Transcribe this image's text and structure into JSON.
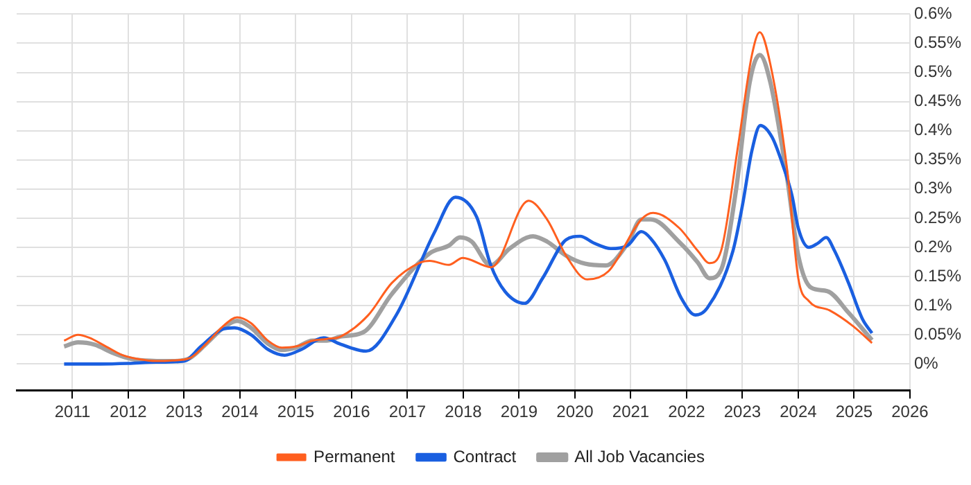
{
  "chart_data": {
    "type": "line",
    "series": [
      {
        "name": "Permanent",
        "color": "#ff5f1f",
        "x": [
          2010.85,
          2011.1,
          2011.3,
          2011.6,
          2011.9,
          2012.2,
          2012.5,
          2012.8,
          2013.1,
          2013.4,
          2013.7,
          2013.95,
          2014.2,
          2014.5,
          2014.75,
          2015.0,
          2015.3,
          2015.55,
          2015.8,
          2016.3,
          2016.72,
          2017.23,
          2017.4,
          2017.74,
          2017.99,
          2018.5,
          2019.17,
          2019.5,
          2019.84,
          2020.22,
          2020.6,
          2021.19,
          2021.4,
          2021.87,
          2022.2,
          2022.41,
          2022.62,
          2022.92,
          2023.17,
          2023.31,
          2023.5,
          2023.8,
          2024.0,
          2024.19,
          2024.56,
          2024.98,
          2025.32
        ],
        "values": [
          0.04,
          0.05,
          0.045,
          0.03,
          0.015,
          0.008,
          0.005,
          0.006,
          0.01,
          0.035,
          0.065,
          0.08,
          0.07,
          0.04,
          0.028,
          0.03,
          0.04,
          0.043,
          0.047,
          0.084,
          0.139,
          0.174,
          0.177,
          0.17,
          0.182,
          0.166,
          0.28,
          0.248,
          0.186,
          0.145,
          0.159,
          0.248,
          0.259,
          0.233,
          0.194,
          0.173,
          0.195,
          0.373,
          0.53,
          0.569,
          0.514,
          0.334,
          0.147,
          0.108,
          0.092,
          0.065,
          0.036
        ]
      },
      {
        "name": "Contract",
        "color": "#1a5fe0",
        "x": [
          2010.85,
          2011.5,
          2012.0,
          2012.5,
          2013.0,
          2013.3,
          2013.7,
          2013.9,
          2014.2,
          2014.5,
          2014.8,
          2015.1,
          2015.5,
          2015.8,
          2016.26,
          2016.8,
          2017.48,
          2017.86,
          2018.24,
          2018.49,
          2018.75,
          2019.1,
          2019.42,
          2019.84,
          2020.09,
          2020.35,
          2020.64,
          2020.94,
          2021.19,
          2021.36,
          2021.61,
          2021.91,
          2022.16,
          2022.37,
          2022.83,
          2023.0,
          2023.17,
          2023.32,
          2023.53,
          2023.72,
          2023.89,
          2024.0,
          2024.19,
          2024.35,
          2024.5,
          2024.65,
          2024.9,
          2025.15,
          2025.32
        ],
        "values": [
          0,
          0,
          0.001,
          0.003,
          0.005,
          0.03,
          0.06,
          0.062,
          0.05,
          0.025,
          0.015,
          0.025,
          0.045,
          0.034,
          0.022,
          0.084,
          0.225,
          0.286,
          0.252,
          0.17,
          0.124,
          0.104,
          0.147,
          0.213,
          0.219,
          0.207,
          0.198,
          0.203,
          0.227,
          0.215,
          0.178,
          0.112,
          0.084,
          0.096,
          0.194,
          0.272,
          0.366,
          0.409,
          0.389,
          0.342,
          0.288,
          0.233,
          0.2,
          0.207,
          0.217,
          0.194,
          0.139,
          0.077,
          0.053
        ]
      },
      {
        "name": "All Job Vacancies",
        "color": "#a0a0a0",
        "x": [
          2010.85,
          2011.1,
          2011.4,
          2011.7,
          2012.0,
          2012.3,
          2012.8,
          2013.1,
          2013.4,
          2013.7,
          2013.95,
          2014.2,
          2014.5,
          2014.75,
          2015.0,
          2015.3,
          2015.55,
          2015.8,
          2016.22,
          2016.72,
          2017.4,
          2017.74,
          2017.94,
          2018.15,
          2018.49,
          2018.83,
          2019.25,
          2019.5,
          2019.84,
          2020.18,
          2020.55,
          2020.94,
          2021.19,
          2021.36,
          2021.87,
          2022.2,
          2022.41,
          2022.62,
          2022.88,
          2023.13,
          2023.31,
          2023.5,
          2023.8,
          2024.0,
          2024.23,
          2024.52,
          2024.9,
          2025.32
        ],
        "values": [
          0.03,
          0.037,
          0.033,
          0.02,
          0.01,
          0.006,
          0.005,
          0.01,
          0.035,
          0.062,
          0.074,
          0.062,
          0.035,
          0.024,
          0.028,
          0.04,
          0.04,
          0.047,
          0.055,
          0.12,
          0.19,
          0.203,
          0.217,
          0.21,
          0.169,
          0.198,
          0.219,
          0.21,
          0.186,
          0.172,
          0.169,
          0.206,
          0.248,
          0.248,
          0.209,
          0.174,
          0.147,
          0.162,
          0.295,
          0.483,
          0.53,
          0.483,
          0.319,
          0.186,
          0.131,
          0.125,
          0.088,
          0.041
        ]
      }
    ],
    "xlim": [
      2010,
      2026
    ],
    "xticks": [
      2011,
      2012,
      2013,
      2014,
      2015,
      2016,
      2017,
      2018,
      2019,
      2020,
      2021,
      2022,
      2023,
      2024,
      2025,
      2026
    ],
    "ylim": [
      -0.045,
      0.6
    ],
    "yticks": [
      {
        "value": 0,
        "label": "0%"
      },
      {
        "value": 0.05,
        "label": "0.05%"
      },
      {
        "value": 0.1,
        "label": "0.1%"
      },
      {
        "value": 0.15,
        "label": "0.15%"
      },
      {
        "value": 0.2,
        "label": "0.2%"
      },
      {
        "value": 0.25,
        "label": "0.25%"
      },
      {
        "value": 0.3,
        "label": "0.3%"
      },
      {
        "value": 0.35,
        "label": "0.35%"
      },
      {
        "value": 0.4,
        "label": "0.4%"
      },
      {
        "value": 0.45,
        "label": "0.45%"
      },
      {
        "value": 0.5,
        "label": "0.5%"
      },
      {
        "value": 0.55,
        "label": "0.55%"
      },
      {
        "value": 0.6,
        "label": "0.6%"
      }
    ],
    "grid": true,
    "legend": "bottom",
    "marker": "none",
    "line_style": "solid"
  }
}
